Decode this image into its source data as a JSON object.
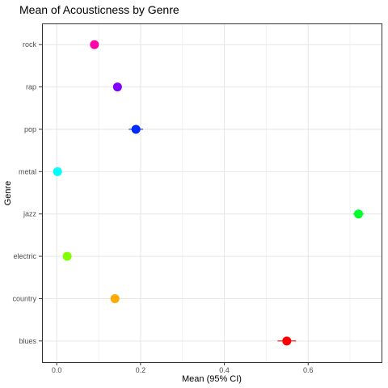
{
  "chart_data": {
    "type": "scatter",
    "title": "Mean of Acousticness by Genre",
    "xlabel": "Mean (95% CI)",
    "ylabel": "Genre",
    "xlim": [
      -0.035,
      0.775
    ],
    "xticks": [
      0.0,
      0.2,
      0.4,
      0.6
    ],
    "xtick_labels": [
      "0.0",
      "0.2",
      "0.4",
      "0.6"
    ],
    "grid": true,
    "legend": "none",
    "categories": [
      "blues",
      "country",
      "electric",
      "jazz",
      "metal",
      "pop",
      "rap",
      "rock"
    ],
    "points": [
      {
        "genre": "blues",
        "mean": 0.549,
        "ci_low": 0.527,
        "ci_high": 0.571,
        "color": "#ff0000"
      },
      {
        "genre": "country",
        "mean": 0.139,
        "ci_low": 0.132,
        "ci_high": 0.146,
        "color": "#ffaa00"
      },
      {
        "genre": "electric",
        "mean": 0.025,
        "ci_low": 0.021,
        "ci_high": 0.029,
        "color": "#80ff00"
      },
      {
        "genre": "jazz",
        "mean": 0.72,
        "ci_low": 0.707,
        "ci_high": 0.733,
        "color": "#00ff2a"
      },
      {
        "genre": "metal",
        "mean": 0.002,
        "ci_low": 0.001,
        "ci_high": 0.003,
        "color": "#00ffff"
      },
      {
        "genre": "pop",
        "mean": 0.189,
        "ci_low": 0.172,
        "ci_high": 0.206,
        "color": "#002aff"
      },
      {
        "genre": "rap",
        "mean": 0.145,
        "ci_low": 0.139,
        "ci_high": 0.151,
        "color": "#8000ff"
      },
      {
        "genre": "rock",
        "mean": 0.09,
        "ci_low": 0.085,
        "ci_high": 0.095,
        "color": "#ff00aa"
      }
    ]
  }
}
